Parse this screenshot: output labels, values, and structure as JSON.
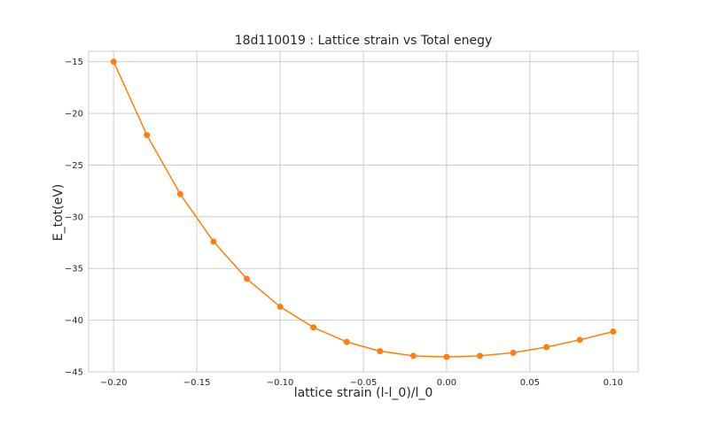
{
  "chart_data": {
    "type": "line",
    "title": "18d110019 : Lattice strain vs Total enegy",
    "xlabel": "lattice strain (l-l_0)/l_0",
    "ylabel": "E_tot(eV)",
    "xlim": [
      -0.215,
      0.115
    ],
    "ylim": [
      -45,
      -14
    ],
    "xticks": [
      -0.2,
      -0.15,
      -0.1,
      -0.05,
      0.0,
      0.05,
      0.1
    ],
    "xtick_labels": [
      "−0.20",
      "−0.15",
      "−0.10",
      "−0.05",
      "0.00",
      "0.05",
      "0.10"
    ],
    "yticks": [
      -15,
      -20,
      -25,
      -30,
      -35,
      -40,
      -45
    ],
    "ytick_labels": [
      "−15",
      "−20",
      "−25",
      "−30",
      "−35",
      "−40",
      "−45"
    ],
    "grid": true,
    "series": [
      {
        "color": "#ff7f0e",
        "marker": "circle",
        "x": [
          -0.2,
          -0.18,
          -0.16,
          -0.14,
          -0.12,
          -0.1,
          -0.08,
          -0.06,
          -0.04,
          -0.02,
          0.0,
          0.02,
          0.04,
          0.06,
          0.08,
          0.1
        ],
        "y": [
          -15.0,
          -22.1,
          -27.8,
          -32.4,
          -36.0,
          -38.7,
          -40.7,
          -42.1,
          -43.0,
          -43.45,
          -43.55,
          -43.45,
          -43.15,
          -42.6,
          -41.9,
          -41.1
        ]
      }
    ]
  }
}
